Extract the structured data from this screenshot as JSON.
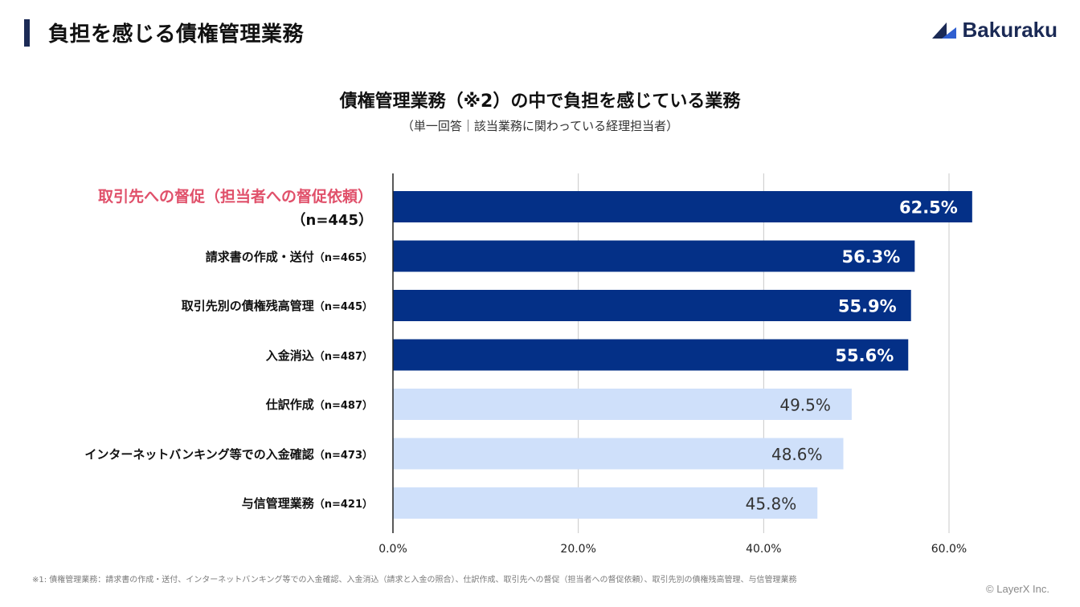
{
  "page_title": "負担を感じる債権管理業務",
  "brand": {
    "name": "Bakuraku",
    "logo_icon": "bakuraku-logo-icon",
    "color": "#1b2a55"
  },
  "footnote": "※1: 債権管理業務：請求書の作成・送付、インターネットバンキング等での入金確認、入金消込（請求と入金の照合）、仕訳作成、取引先への督促（担当者への督促依頼）、取引先別の債権残高管理、与信管理業務",
  "copyright": "© LayerX Inc.",
  "colors": {
    "dark_bar": "#043087",
    "light_bar": "#cfe0fa",
    "highlight_label": "#e0506a",
    "grid": "#c8c8c8"
  },
  "chart_data": {
    "type": "bar",
    "orientation": "horizontal",
    "title": "債権管理業務（※2）の中で負担を感じている業務",
    "subtitle": "（単一回答｜該当業務に関わっている経理担当者）",
    "categories": [
      {
        "label": "取引先への督促（担当者への督促依頼）",
        "n": "（n=445）",
        "highlight": true
      },
      {
        "label": "請求書の作成・送付",
        "n": "（n=465）",
        "highlight": false
      },
      {
        "label": "取引先別の債権残高管理",
        "n": "（n=445）",
        "highlight": false
      },
      {
        "label": "入金消込",
        "n": "（n=487）",
        "highlight": false
      },
      {
        "label": "仕訳作成",
        "n": "（n=487）",
        "highlight": false
      },
      {
        "label": "インターネットバンキング等での入金確認",
        "n": "（n=473）",
        "highlight": false
      },
      {
        "label": "与信管理業務",
        "n": "（n=421）",
        "highlight": false
      }
    ],
    "values": [
      62.5,
      56.3,
      55.9,
      55.6,
      49.5,
      48.6,
      45.8
    ],
    "value_labels": [
      "62.5%",
      "56.3%",
      "55.9%",
      "55.6%",
      "49.5%",
      "48.6%",
      "45.8%"
    ],
    "bar_style": [
      "dark",
      "dark",
      "dark",
      "dark",
      "light",
      "light",
      "light"
    ],
    "x_ticks": [
      0,
      20,
      40,
      60
    ],
    "x_tick_labels": [
      "0.0%",
      "20.0%",
      "40.0%",
      "60.0%"
    ],
    "xlim": [
      0,
      60
    ],
    "grid": true
  }
}
